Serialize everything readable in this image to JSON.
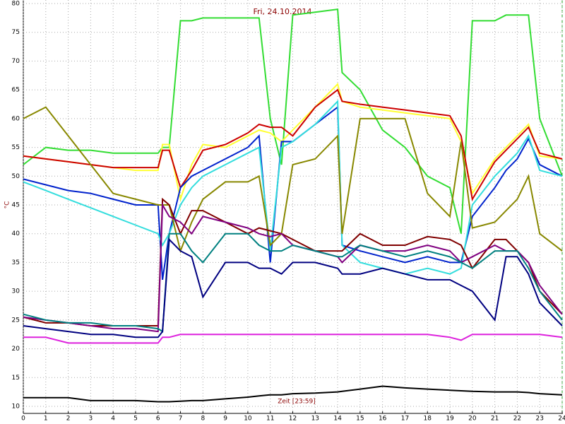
{
  "chart_data": {
    "type": "line",
    "title": "Fri, 24.10.2014",
    "ylabel": "°C",
    "annotation": "Zeit [23:59]",
    "xlim": [
      0,
      24
    ],
    "xticks": [
      0,
      1,
      2,
      3,
      4,
      5,
      6,
      7,
      8,
      9,
      10,
      11,
      12,
      13,
      14,
      15,
      16,
      17,
      18,
      19,
      20,
      21,
      22,
      23,
      24
    ],
    "ylim": [
      10,
      80
    ],
    "yticks": [
      10,
      15,
      20,
      25,
      30,
      35,
      40,
      45,
      50,
      55,
      60,
      65,
      70,
      75,
      80
    ],
    "grid": true,
    "x": [
      0,
      1,
      2,
      3,
      4,
      5,
      6,
      6.2,
      6.5,
      7,
      7.5,
      8,
      9,
      10,
      10.5,
      11,
      11.5,
      12,
      13,
      14,
      14.2,
      15,
      16,
      17,
      18,
      19,
      19.5,
      20,
      21,
      21.5,
      22,
      22.5,
      23,
      24
    ],
    "series": [
      {
        "color": "#33dd33",
        "values": [
          52,
          55,
          54.5,
          54.5,
          54,
          54,
          54,
          55,
          55,
          77,
          77,
          77.5,
          77.5,
          77.5,
          77.5,
          60,
          52,
          78,
          78.5,
          79,
          68,
          65,
          58,
          55,
          50,
          48,
          40,
          77,
          77,
          78,
          78,
          78,
          60,
          50
        ]
      },
      {
        "color": "#ffff33",
        "values": [
          53.5,
          53,
          52.5,
          52,
          51.5,
          51,
          51,
          55.5,
          55.5,
          46,
          52,
          55.5,
          55,
          57,
          58,
          57.5,
          56,
          58,
          62,
          66,
          63,
          62,
          61.5,
          61,
          60.5,
          60,
          56,
          47,
          53,
          55,
          57,
          59,
          53.5,
          53
        ]
      },
      {
        "color": "#cc0000",
        "values": [
          53.5,
          53,
          52.5,
          52,
          51.5,
          51.5,
          51.5,
          54.5,
          54.5,
          48,
          51,
          54.5,
          55.5,
          57.5,
          59,
          58.5,
          58.5,
          57,
          62,
          65,
          63,
          62.5,
          62,
          61.5,
          61,
          60.5,
          57,
          46,
          52.5,
          54.5,
          56.5,
          58.5,
          54,
          53
        ]
      },
      {
        "color": "#0022cc",
        "values": [
          49.5,
          48.5,
          47.5,
          47,
          46,
          45,
          45,
          32,
          40,
          48,
          50,
          51,
          53,
          55,
          57,
          35,
          56,
          56,
          59,
          62,
          38,
          37,
          36,
          35,
          36,
          35,
          35,
          43,
          48,
          51,
          53,
          56.5,
          52,
          50
        ]
      },
      {
        "color": "#33dddd",
        "values": [
          49,
          47.5,
          46,
          44.5,
          43,
          41.5,
          40,
          38,
          40,
          45,
          48,
          50,
          52,
          54,
          55,
          37,
          55,
          56,
          59,
          63,
          38,
          35,
          34,
          33,
          34,
          33,
          34,
          45,
          50,
          52,
          54,
          57,
          51,
          50
        ]
      },
      {
        "color": "#888800",
        "values": [
          60,
          62,
          57,
          52,
          47,
          46,
          45,
          45,
          45,
          37,
          42,
          46,
          49,
          49,
          50,
          38,
          40,
          52,
          53,
          57,
          40,
          60,
          60,
          60,
          47,
          43,
          56,
          41,
          42,
          44,
          46,
          50,
          40,
          37
        ]
      },
      {
        "color": "#800000",
        "values": [
          25.5,
          24.5,
          24.5,
          24,
          24,
          24,
          24,
          46,
          45,
          40,
          44,
          44,
          42,
          40,
          41,
          40.5,
          40,
          39,
          37,
          37,
          37,
          40,
          38,
          38,
          39.5,
          39,
          38,
          34,
          39,
          39,
          37,
          35,
          30,
          26
        ]
      },
      {
        "color": "#800080",
        "values": [
          25.5,
          25,
          24.5,
          24,
          23.5,
          23.5,
          23,
          45,
          43,
          42,
          40,
          43,
          42,
          41,
          40,
          39.5,
          40,
          38,
          37,
          36,
          35,
          38,
          37,
          37,
          38,
          37,
          35,
          36,
          38,
          37,
          37,
          35,
          31,
          26
        ]
      },
      {
        "color": "#008080",
        "values": [
          26,
          25,
          24.5,
          24.5,
          24,
          24,
          23.5,
          23,
          40,
          40,
          37,
          35,
          40,
          40,
          38,
          37,
          37,
          38,
          37,
          36,
          36,
          38,
          37,
          36,
          37,
          36,
          35,
          34,
          37,
          37,
          37,
          34,
          30,
          25
        ]
      },
      {
        "color": "#000080",
        "values": [
          24,
          23.5,
          23,
          22.5,
          22.5,
          22,
          22,
          23,
          39,
          37,
          36,
          29,
          35,
          35,
          34,
          34,
          33,
          35,
          35,
          34,
          33,
          33,
          34,
          33,
          32,
          32,
          31,
          30,
          25,
          36,
          36,
          33,
          28,
          24
        ]
      },
      {
        "color": "#dd22dd",
        "values": [
          22,
          22,
          21,
          21,
          21,
          21,
          21,
          22,
          22,
          22.5,
          22.5,
          22.5,
          22.5,
          22.5,
          22.5,
          22.5,
          22.5,
          22.5,
          22.5,
          22.5,
          22.5,
          22.5,
          22.5,
          22.5,
          22.5,
          22,
          21.5,
          22.5,
          22.5,
          22.5,
          22.5,
          22.5,
          22.5,
          22
        ]
      },
      {
        "color": "#000000",
        "values": [
          11.5,
          11.5,
          11.5,
          11,
          11,
          11,
          10.8,
          10.8,
          10.8,
          10.9,
          11,
          11,
          11.3,
          11.6,
          11.8,
          12,
          12,
          12.2,
          12.3,
          12.5,
          12.6,
          13,
          13.5,
          13.2,
          13,
          12.8,
          12.7,
          12.6,
          12.5,
          12.5,
          12.5,
          12.4,
          12.2,
          12
        ]
      }
    ]
  }
}
